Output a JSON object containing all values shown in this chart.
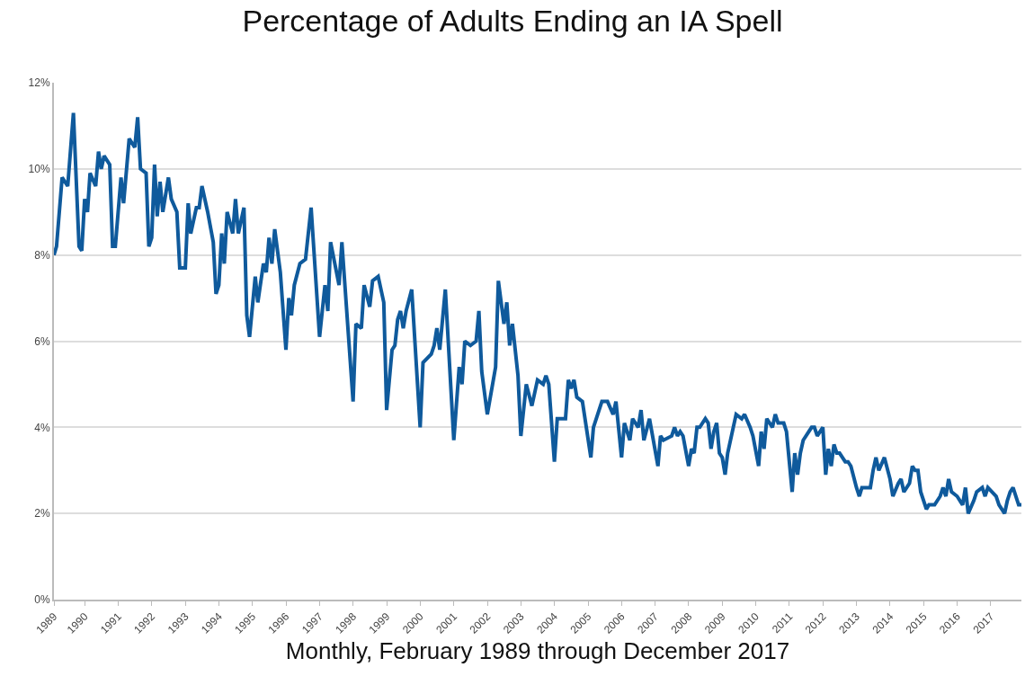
{
  "chart_data": {
    "type": "line",
    "title": "Percentage of Adults Ending an IA Spell",
    "xlabel": "Monthly, February 1989 through December 2017",
    "x": [
      "1989-02",
      "1989-03",
      "1989-05",
      "1989-07",
      "1989-09",
      "1989-11",
      "1989-12",
      "1990-01",
      "1990-02",
      "1990-03",
      "1990-05",
      "1990-06",
      "1990-07",
      "1990-08",
      "1990-10",
      "1990-11",
      "1990-12",
      "1991-02",
      "1991-03",
      "1991-05",
      "1991-07",
      "1991-08",
      "1991-09",
      "1991-11",
      "1991-12",
      "1992-01",
      "1992-02",
      "1992-03",
      "1992-04",
      "1992-05",
      "1992-07",
      "1992-08",
      "1992-10",
      "1992-11",
      "1993-01",
      "1993-02",
      "1993-03",
      "1993-05",
      "1993-06",
      "1993-07",
      "1993-09",
      "1993-11",
      "1993-12",
      "1994-01",
      "1994-02",
      "1994-03",
      "1994-04",
      "1994-06",
      "1994-07",
      "1994-08",
      "1994-10",
      "1994-11",
      "1994-12",
      "1995-02",
      "1995-03",
      "1995-05",
      "1995-06",
      "1995-07",
      "1995-08",
      "1995-09",
      "1995-11",
      "1996-01",
      "1996-02",
      "1996-03",
      "1996-04",
      "1996-06",
      "1996-08",
      "1996-10",
      "1997-01",
      "1997-03",
      "1997-04",
      "1997-05",
      "1997-08",
      "1997-09",
      "1998-01",
      "1998-02",
      "1998-04",
      "1998-05",
      "1998-07",
      "1998-08",
      "1998-10",
      "1998-12",
      "1999-01",
      "1999-03",
      "1999-04",
      "1999-05",
      "1999-06",
      "1999-07",
      "1999-08",
      "1999-10",
      "2000-01",
      "2000-02",
      "2000-05",
      "2000-06",
      "2000-07",
      "2000-08",
      "2000-10",
      "2001-01",
      "2001-03",
      "2001-04",
      "2001-05",
      "2001-07",
      "2001-09",
      "2001-10",
      "2001-11",
      "2002-01",
      "2002-04",
      "2002-05",
      "2002-07",
      "2002-08",
      "2002-09",
      "2002-10",
      "2002-12",
      "2003-01",
      "2003-03",
      "2003-05",
      "2003-07",
      "2003-09",
      "2003-10",
      "2003-11",
      "2004-01",
      "2004-02",
      "2004-05",
      "2004-06",
      "2004-07",
      "2004-08",
      "2004-09",
      "2004-11",
      "2005-02",
      "2005-03",
      "2005-06",
      "2005-08",
      "2005-10",
      "2005-11",
      "2006-01",
      "2006-02",
      "2006-04",
      "2006-05",
      "2006-07",
      "2006-08",
      "2006-09",
      "2006-11",
      "2007-02",
      "2007-03",
      "2007-04",
      "2007-07",
      "2007-08",
      "2007-09",
      "2007-10",
      "2007-11",
      "2008-01",
      "2008-02",
      "2008-03",
      "2008-04",
      "2008-05",
      "2008-07",
      "2008-08",
      "2008-09",
      "2008-10",
      "2008-11",
      "2008-12",
      "2009-01",
      "2009-02",
      "2009-03",
      "2009-05",
      "2009-06",
      "2009-08",
      "2009-09",
      "2009-11",
      "2009-12",
      "2010-02",
      "2010-03",
      "2010-04",
      "2010-05",
      "2010-07",
      "2010-08",
      "2010-09",
      "2010-11",
      "2010-12",
      "2011-02",
      "2011-03",
      "2011-04",
      "2011-05",
      "2011-06",
      "2011-08",
      "2011-09",
      "2011-10",
      "2011-11",
      "2012-01",
      "2012-02",
      "2012-03",
      "2012-04",
      "2012-05",
      "2012-06",
      "2012-07",
      "2012-09",
      "2012-10",
      "2012-11",
      "2013-01",
      "2013-02",
      "2013-03",
      "2013-06",
      "2013-07",
      "2013-08",
      "2013-09",
      "2013-11",
      "2014-01",
      "2014-02",
      "2014-04",
      "2014-05",
      "2014-06",
      "2014-08",
      "2014-09",
      "2014-10",
      "2014-11",
      "2014-12",
      "2015-02",
      "2015-03",
      "2015-05",
      "2015-07",
      "2015-08",
      "2015-09",
      "2015-10",
      "2015-11",
      "2016-01",
      "2016-03",
      "2016-04",
      "2016-05",
      "2016-07",
      "2016-08",
      "2016-10",
      "2016-11",
      "2016-12",
      "2017-03",
      "2017-04",
      "2017-06",
      "2017-07",
      "2017-08",
      "2017-09",
      "2017-11",
      "2017-12"
    ],
    "series": [
      {
        "color": "#0f5a9c",
        "values": [
          8.0,
          8.2,
          9.8,
          9.6,
          11.3,
          8.2,
          8.1,
          9.3,
          9.0,
          9.9,
          9.6,
          10.4,
          10.0,
          10.3,
          10.1,
          8.2,
          8.2,
          9.8,
          9.2,
          10.7,
          10.5,
          11.2,
          10.0,
          9.9,
          8.2,
          8.4,
          10.1,
          8.9,
          9.7,
          9.0,
          9.8,
          9.3,
          9.0,
          7.7,
          7.7,
          9.2,
          8.5,
          9.1,
          9.1,
          9.6,
          9.0,
          8.3,
          7.1,
          7.3,
          8.5,
          7.8,
          9.0,
          8.5,
          9.3,
          8.5,
          9.1,
          6.6,
          6.1,
          7.5,
          6.9,
          7.8,
          7.6,
          8.4,
          7.8,
          8.6,
          7.6,
          5.8,
          7.0,
          6.6,
          7.3,
          7.8,
          7.9,
          9.1,
          6.1,
          7.3,
          6.7,
          8.3,
          7.3,
          8.3,
          4.6,
          6.4,
          6.3,
          7.3,
          6.8,
          7.4,
          7.5,
          6.9,
          4.4,
          5.8,
          5.9,
          6.5,
          6.7,
          6.3,
          6.7,
          7.2,
          4.0,
          5.5,
          5.7,
          5.9,
          6.3,
          5.8,
          7.2,
          3.7,
          5.4,
          5.0,
          6.0,
          5.9,
          6.0,
          6.7,
          5.3,
          4.3,
          5.4,
          7.4,
          6.4,
          6.9,
          5.9,
          6.4,
          5.2,
          3.8,
          5.0,
          4.5,
          5.1,
          5.0,
          5.2,
          5.0,
          3.2,
          4.2,
          4.2,
          5.1,
          4.9,
          5.1,
          4.7,
          4.6,
          3.3,
          4.0,
          4.6,
          4.6,
          4.3,
          4.6,
          3.3,
          4.1,
          3.7,
          4.2,
          4.0,
          4.4,
          3.7,
          4.2,
          3.1,
          3.8,
          3.7,
          3.8,
          4.0,
          3.8,
          3.9,
          3.8,
          3.1,
          3.5,
          3.4,
          4.0,
          4.0,
          4.2,
          4.1,
          3.5,
          3.9,
          4.1,
          3.4,
          3.3,
          2.9,
          3.4,
          4.0,
          4.3,
          4.2,
          4.3,
          4.0,
          3.8,
          3.1,
          3.9,
          3.5,
          4.2,
          4.0,
          4.3,
          4.1,
          4.1,
          3.9,
          2.5,
          3.4,
          2.9,
          3.4,
          3.7,
          3.9,
          4.0,
          4.0,
          3.8,
          4.0,
          2.9,
          3.5,
          3.1,
          3.6,
          3.4,
          3.4,
          3.2,
          3.2,
          3.1,
          2.6,
          2.4,
          2.6,
          2.6,
          3.0,
          3.3,
          3.0,
          3.3,
          2.8,
          2.4,
          2.7,
          2.8,
          2.5,
          2.7,
          3.1,
          3.0,
          3.0,
          2.5,
          2.1,
          2.2,
          2.2,
          2.4,
          2.6,
          2.4,
          2.8,
          2.5,
          2.4,
          2.2,
          2.6,
          2.0,
          2.3,
          2.5,
          2.6,
          2.4,
          2.6,
          2.4,
          2.2,
          2.0,
          2.3,
          2.5,
          2.6,
          2.2,
          2.2
        ]
      }
    ],
    "xlim": [
      "1989-02",
      "2017-12"
    ],
    "xticks": [
      {
        "value": "1989-02",
        "label": "1989"
      },
      {
        "value": "1990-01",
        "label": "1990"
      },
      {
        "value": "1991-01",
        "label": "1991"
      },
      {
        "value": "1992-01",
        "label": "1992"
      },
      {
        "value": "1993-01",
        "label": "1993"
      },
      {
        "value": "1994-01",
        "label": "1994"
      },
      {
        "value": "1995-01",
        "label": "1995"
      },
      {
        "value": "1996-01",
        "label": "1996"
      },
      {
        "value": "1997-01",
        "label": "1997"
      },
      {
        "value": "1998-01",
        "label": "1998"
      },
      {
        "value": "1999-01",
        "label": "1999"
      },
      {
        "value": "2000-01",
        "label": "2000"
      },
      {
        "value": "2001-01",
        "label": "2001"
      },
      {
        "value": "2002-01",
        "label": "2002"
      },
      {
        "value": "2003-01",
        "label": "2003"
      },
      {
        "value": "2004-01",
        "label": "2004"
      },
      {
        "value": "2005-01",
        "label": "2005"
      },
      {
        "value": "2006-01",
        "label": "2006"
      },
      {
        "value": "2007-01",
        "label": "2007"
      },
      {
        "value": "2008-01",
        "label": "2008"
      },
      {
        "value": "2009-01",
        "label": "2009"
      },
      {
        "value": "2010-01",
        "label": "2010"
      },
      {
        "value": "2011-01",
        "label": "2011"
      },
      {
        "value": "2012-01",
        "label": "2012"
      },
      {
        "value": "2013-01",
        "label": "2013"
      },
      {
        "value": "2014-01",
        "label": "2014"
      },
      {
        "value": "2015-01",
        "label": "2015"
      },
      {
        "value": "2016-01",
        "label": "2016"
      },
      {
        "value": "2017-01",
        "label": "2017"
      }
    ],
    "ylim": [
      0,
      12
    ],
    "yticks": [
      {
        "value": 0,
        "label": "0%"
      },
      {
        "value": 2,
        "label": "2%"
      },
      {
        "value": 4,
        "label": "4%"
      },
      {
        "value": 6,
        "label": "6%"
      },
      {
        "value": 8,
        "label": "8%"
      },
      {
        "value": 10,
        "label": "10%"
      },
      {
        "value": 12,
        "label": "12%"
      }
    ],
    "grid": "y",
    "line_style": "solid",
    "marker": "none"
  }
}
